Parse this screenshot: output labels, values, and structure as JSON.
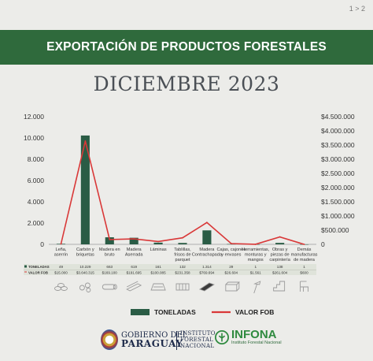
{
  "page_number": "1 > 2",
  "header": {
    "title": "EXPORTACIÓN DE PRODUCTOS FORESTALES"
  },
  "subtitle": "DICIEMBRE 2023",
  "chart_data": {
    "type": "bar+line",
    "categories": [
      [
        "Leña,",
        "aserrín"
      ],
      [
        "Carbón y",
        "briquetas"
      ],
      [
        "Madera en",
        "bruto"
      ],
      [
        "Madera",
        "Aserrada"
      ],
      [
        "Láminas"
      ],
      [
        "Tablillas,",
        "frisos de",
        "parquet"
      ],
      [
        "Madera",
        "Contrachapada"
      ],
      [
        "Cajas, cajones",
        "y envases"
      ],
      [
        "Herramientas,",
        "monturas y",
        "mangos"
      ],
      [
        "Obras y",
        "piezas de",
        "carpintería"
      ],
      [
        "Demás",
        "manufacturas",
        "de madera"
      ]
    ],
    "series": [
      {
        "name": "TONELADAS",
        "type": "bar",
        "axis": "left",
        "color": "#2a5c45",
        "values": [
          49,
          10229,
          663,
          619,
          161,
          132,
          1314,
          29,
          1,
          138,
          1
        ]
      },
      {
        "name": "VALOR FOB",
        "type": "line",
        "axis": "right",
        "color": "#d93838",
        "values": [
          15000,
          3640315,
          169100,
          191695,
          100085,
          231358,
          769694,
          26604,
          1561,
          261604,
          600
        ]
      }
    ],
    "ylim_left": [
      0,
      12000
    ],
    "ylim_right": [
      0,
      4500000
    ],
    "yticks_left": [
      "0",
      "2.000",
      "4.000",
      "6.000",
      "8.000",
      "10.000",
      "12.000"
    ],
    "yticks_right": [
      "0",
      "$500.000",
      "$1.000.000",
      "$1.500.000",
      "$2.000.000",
      "$2.500.000",
      "$3.000.000",
      "$3.500.000",
      "$4.000.000",
      "$4.500.000"
    ],
    "grid": false,
    "legend_position": "bottom",
    "table": {
      "row_labels": [
        "TONELADAS",
        "VALOR FOB"
      ],
      "toneladas": [
        "49",
        "10.229",
        "663",
        "619",
        "161",
        "132",
        "1.314",
        "29",
        "1",
        "138",
        "1"
      ],
      "valor_fob": [
        "$15.000",
        "$3.640.315",
        "$169.100",
        "$191.695",
        "$100.085",
        "$231.358",
        "$769.694",
        "$26.604",
        "$1.561",
        "$261.604",
        "$600"
      ]
    }
  },
  "footer": {
    "gob_line1": "GOBIERNO DEL",
    "gob_line2": "PARAGUAY",
    "inst_line1": "INSTITUTO",
    "inst_line2": "FORESTAL",
    "inst_line3": "NACIONAL",
    "infona_name": "INFONA",
    "infona_sub": "Instituto Forestal Nacional"
  }
}
